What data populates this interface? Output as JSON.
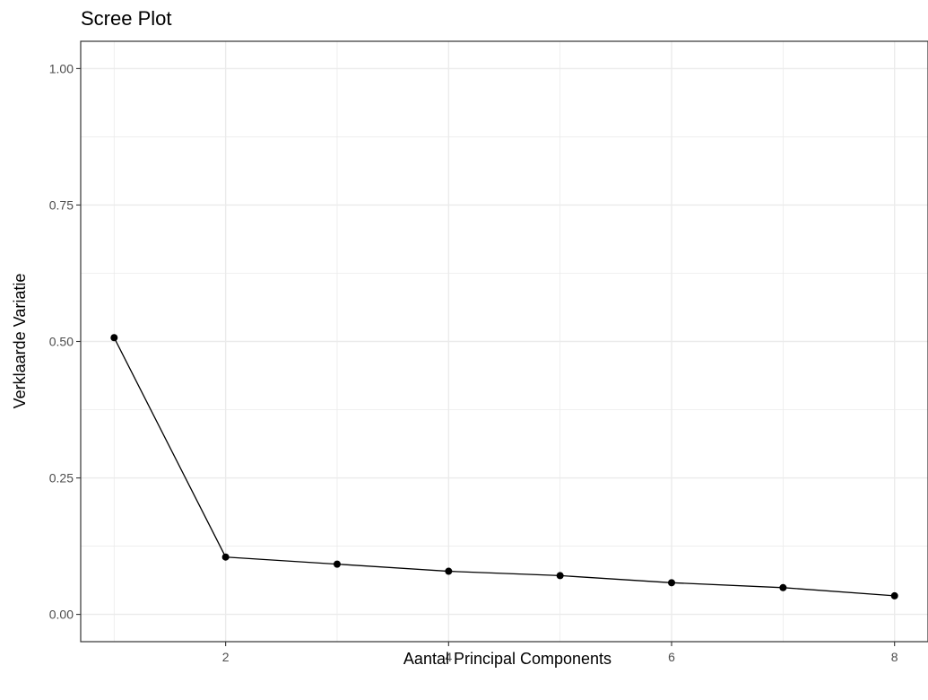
{
  "chart_data": {
    "type": "line",
    "title": "Scree Plot",
    "xlabel": "Aantal Principal Components",
    "ylabel": "Verklaarde Variatie",
    "x": [
      1,
      2,
      3,
      4,
      5,
      6,
      7,
      8
    ],
    "series": [
      {
        "values": [
          0.507,
          0.105,
          0.092,
          0.079,
          0.071,
          0.058,
          0.049,
          0.034
        ]
      }
    ],
    "xlim": [
      0.7,
      8.3
    ],
    "ylim": [
      -0.05,
      1.05
    ],
    "xticks": [
      2,
      4,
      6,
      8
    ],
    "xtick_labels": [
      "2",
      "4",
      "6",
      "8"
    ],
    "yticks": [
      0,
      0.25,
      0.5,
      0.75,
      1
    ],
    "ytick_labels": [
      "0.00",
      "0.25",
      "0.50",
      "0.75",
      "1.00"
    ],
    "grid": true,
    "colors": {
      "line": "#000000",
      "point": "#000000",
      "grid": "#ebebeb",
      "panel_border": "#333333",
      "tick_text": "#4d4d4d"
    }
  }
}
